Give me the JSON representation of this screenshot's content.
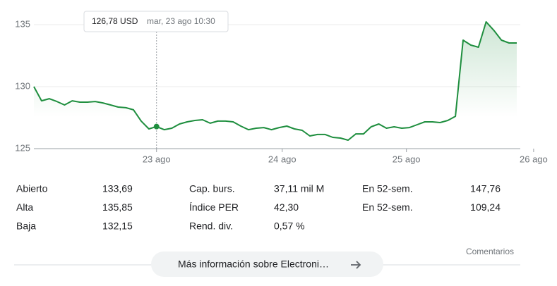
{
  "chart_data": {
    "type": "line",
    "color": "#1e8e3e",
    "values": [
      130.0,
      128.86,
      129.03,
      128.8,
      128.52,
      128.86,
      128.75,
      128.75,
      128.8,
      128.69,
      128.52,
      128.35,
      128.3,
      128.13,
      127.22,
      126.59,
      126.78,
      126.53,
      126.65,
      126.99,
      127.16,
      127.27,
      127.33,
      127.05,
      127.22,
      127.22,
      127.16,
      126.82,
      126.53,
      126.65,
      126.7,
      126.53,
      126.7,
      126.82,
      126.59,
      126.48,
      126.02,
      126.14,
      126.14,
      125.91,
      125.85,
      125.68,
      126.19,
      126.19,
      126.76,
      126.99,
      126.65,
      126.76,
      126.65,
      126.7,
      126.93,
      127.16,
      127.16,
      127.1,
      127.27,
      127.61,
      133.75,
      133.35,
      133.18,
      135.23,
      134.55,
      133.75,
      133.52,
      133.52
    ],
    "xlim": [
      0,
      63
    ],
    "xticks": [
      {
        "value": 16,
        "label": "23 ago"
      },
      {
        "value": 32.4,
        "label": "24 ago"
      },
      {
        "value": 48.6,
        "label": "25 ago"
      },
      {
        "value": 65.2,
        "label": "26 ago"
      }
    ],
    "ylim": [
      125,
      136
    ],
    "yticks": [
      125,
      130,
      135
    ],
    "grid": true,
    "highlight": {
      "index": 16,
      "price": "126,78 USD",
      "time": "mar, 23 ago 10:30"
    }
  },
  "stats": [
    [
      [
        "Abierto",
        "133,69"
      ],
      [
        "Cap. burs.",
        "37,11 mil M"
      ],
      [
        "En 52-sem.",
        "147,76"
      ]
    ],
    [
      [
        "Alta",
        "135,85"
      ],
      [
        "Índice PER",
        "42,30"
      ],
      [
        "En 52-sem.",
        "109,24"
      ]
    ],
    [
      [
        "Baja",
        "132,15"
      ],
      [
        "Rend. div.",
        "0,57 %"
      ]
    ]
  ],
  "footer": {
    "comments": "Comentarios",
    "button": "Más información sobre Electroni…"
  }
}
